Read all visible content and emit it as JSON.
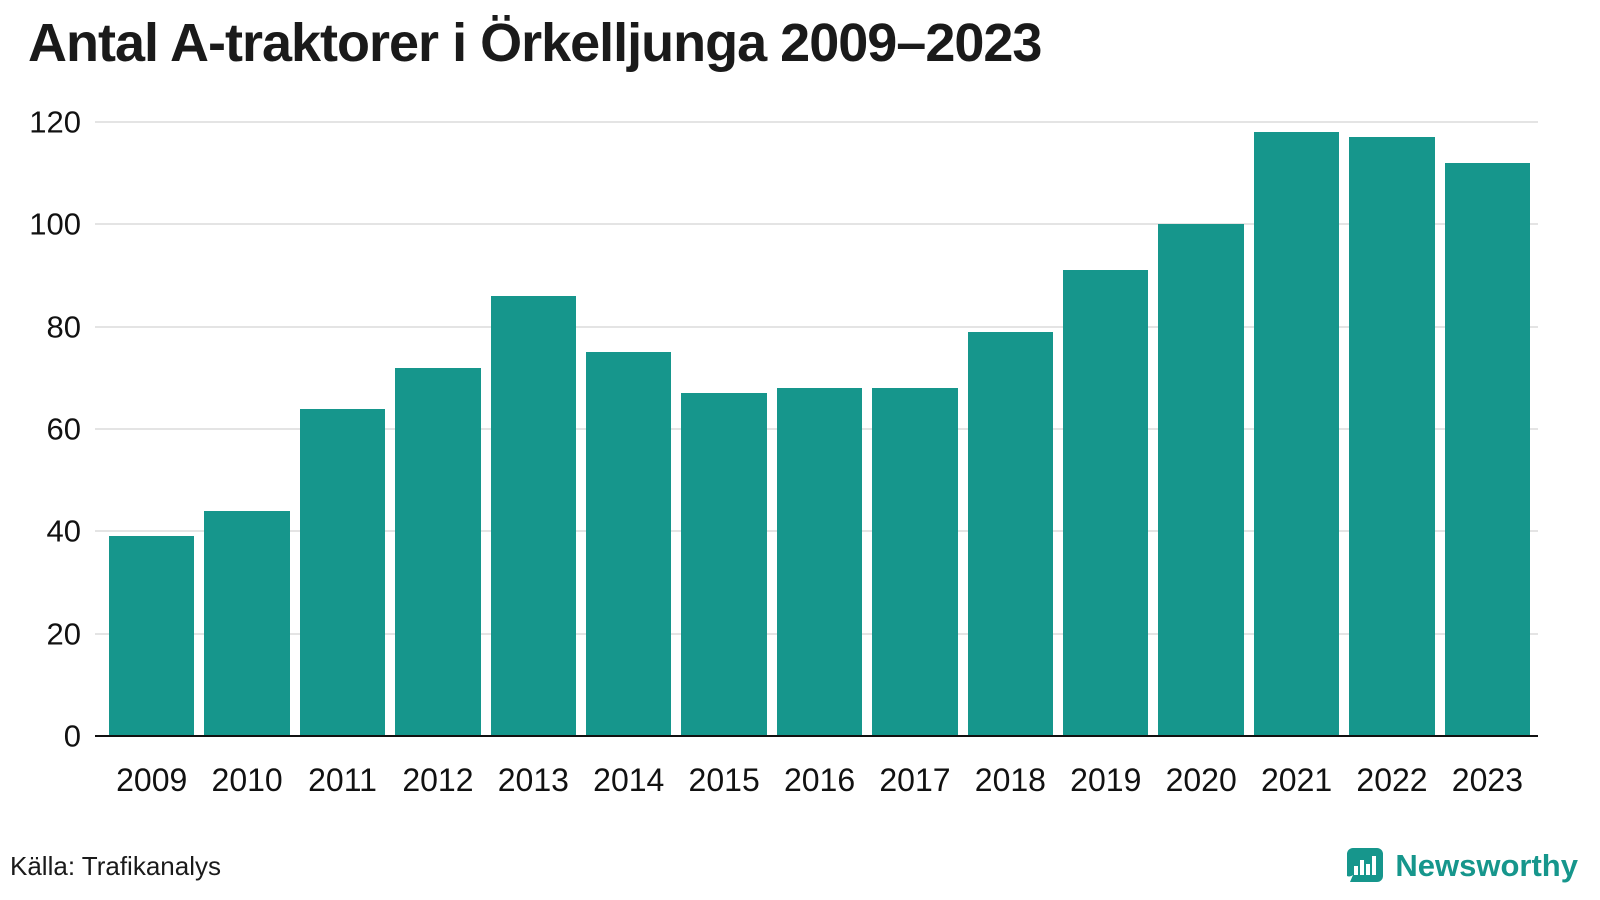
{
  "title": "Antal A-traktorer i Örkelljunga 2009–2023",
  "source": "Källa: Trafikanalys",
  "brand": {
    "name": "Newsworthy",
    "color": "#16968c"
  },
  "chart_data": {
    "type": "bar",
    "title": "Antal A-traktorer i Örkelljunga 2009–2023",
    "categories": [
      "2009",
      "2010",
      "2011",
      "2012",
      "2013",
      "2014",
      "2015",
      "2016",
      "2017",
      "2018",
      "2019",
      "2020",
      "2021",
      "2022",
      "2023"
    ],
    "values": [
      39,
      44,
      64,
      72,
      86,
      75,
      67,
      68,
      68,
      79,
      91,
      100,
      118,
      117,
      112
    ],
    "xlabel": "",
    "ylabel": "",
    "ylim": [
      0,
      120
    ],
    "yticks": [
      0,
      20,
      40,
      60,
      80,
      100,
      120
    ],
    "bar_color": "#16968c",
    "grid": true,
    "legend_position": "none"
  }
}
